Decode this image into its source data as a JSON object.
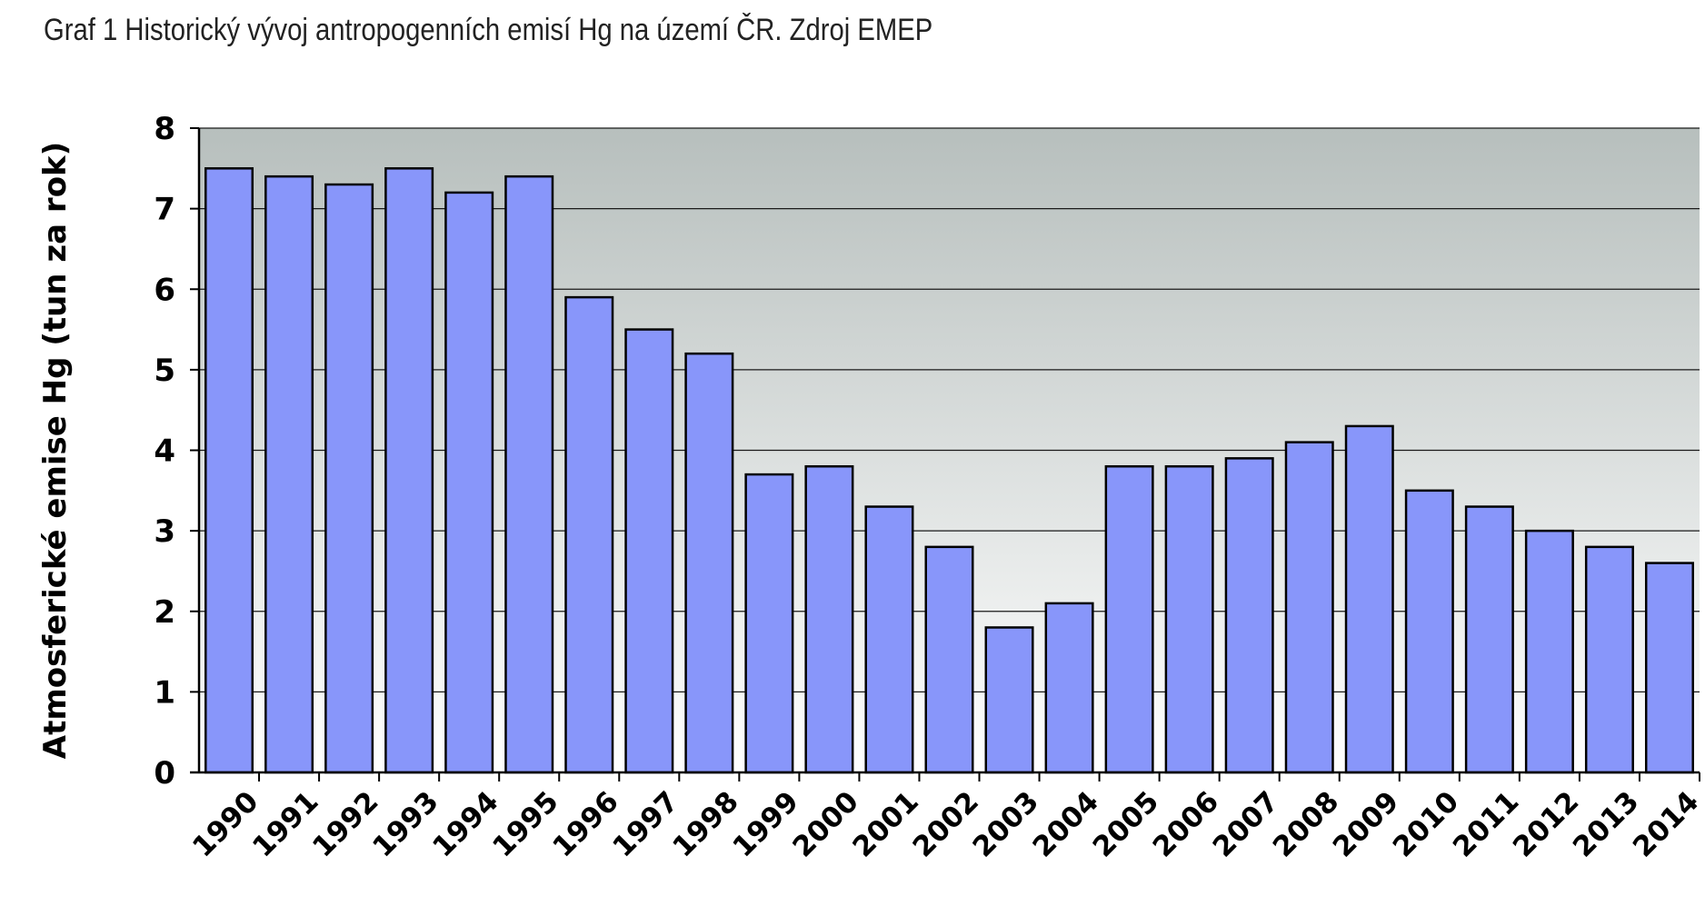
{
  "chart_data": {
    "type": "bar",
    "title": "Graf 1 Historický vývoj antropogenních emisí Hg na území ČR. Zdroj EMEP",
    "xlabel": "",
    "ylabel": "Atmosferické emise Hg (tun za rok)",
    "ylim": [
      0,
      8
    ],
    "yticks": [
      0,
      1,
      2,
      3,
      4,
      5,
      6,
      7,
      8
    ],
    "grid": true,
    "legend": "none",
    "categories": [
      "1990",
      "1991",
      "1992",
      "1993",
      "1994",
      "1995",
      "1996",
      "1997",
      "1998",
      "1999",
      "2000",
      "2001",
      "2002",
      "2003",
      "2004",
      "2005",
      "2006",
      "2007",
      "2008",
      "2009",
      "2010",
      "2011",
      "2012",
      "2013",
      "2014"
    ],
    "values": [
      7.5,
      7.4,
      7.3,
      7.5,
      7.2,
      7.4,
      5.9,
      5.5,
      5.2,
      3.7,
      3.8,
      3.3,
      2.8,
      1.8,
      2.1,
      3.8,
      3.8,
      3.9,
      4.1,
      4.3,
      3.5,
      3.3,
      3.0,
      2.8,
      2.6
    ],
    "colors": {
      "bar": "#8896fa",
      "bar_edge": "#000000",
      "plot_top": "#b7bfbd",
      "plot_bottom": "#ffffff",
      "grid": "#1a1a1a"
    }
  }
}
